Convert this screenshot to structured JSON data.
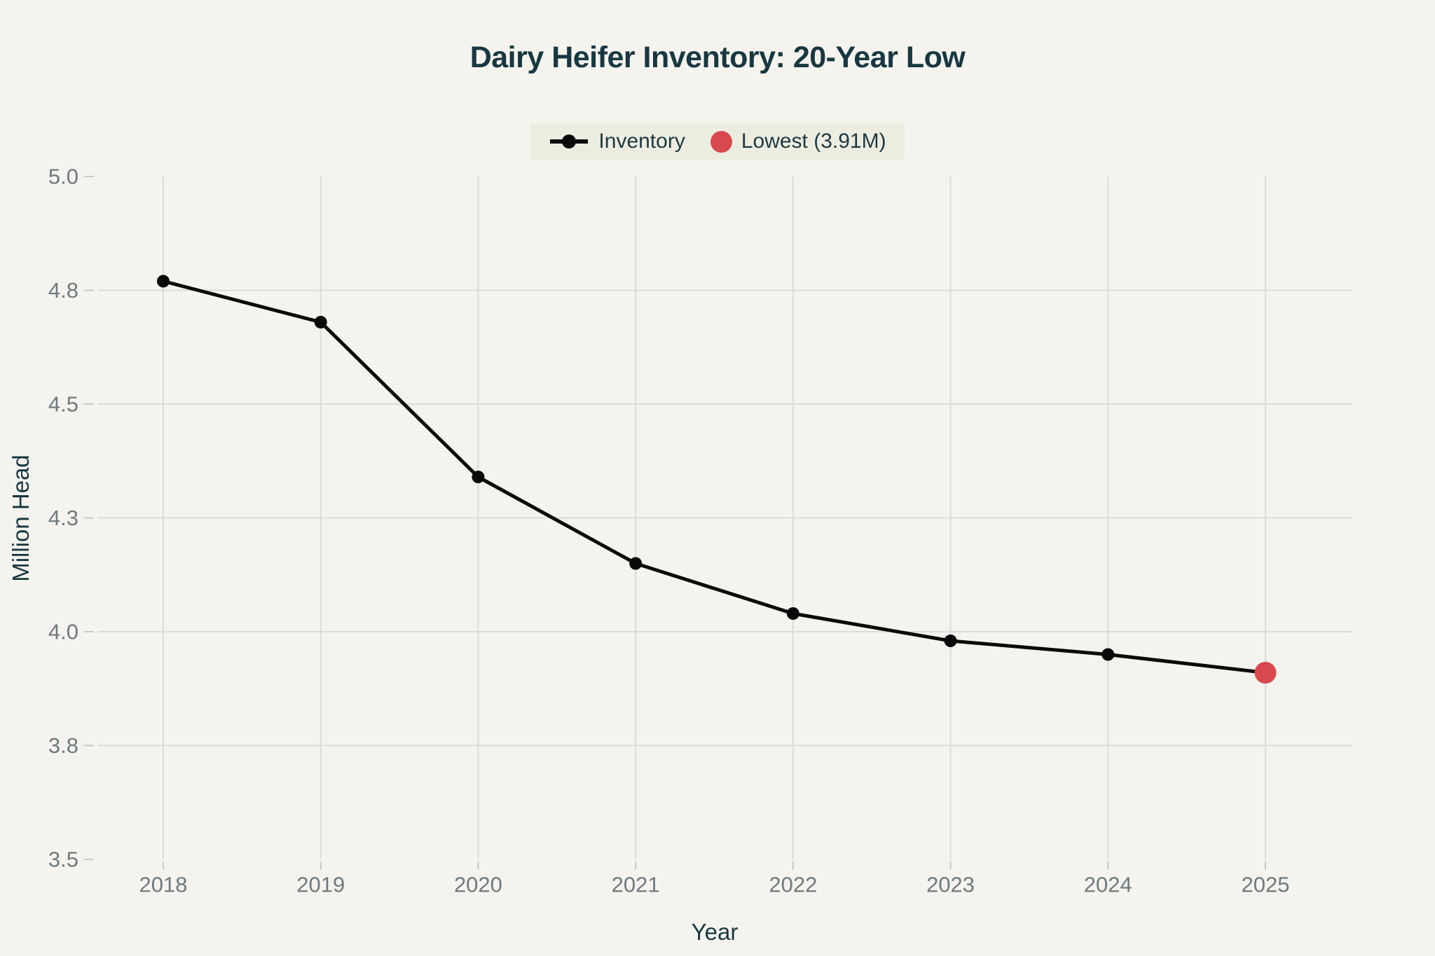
{
  "page": {
    "background": "#f4f3ee"
  },
  "header": {
    "title": "Dairy Heifer Inventory: 20-Year Low"
  },
  "legend": {
    "background": "#ecede0",
    "items": [
      {
        "label": "Inventory",
        "swatch": "line-dot-icon",
        "color": "#0a0a0a"
      },
      {
        "label": "Lowest (3.91M)",
        "swatch": "dot-icon",
        "color": "#d7494c"
      }
    ]
  },
  "axes": {
    "x_title": "Year",
    "y_title": "Million Head"
  },
  "chart_data": {
    "type": "line",
    "title": "Dairy Heifer Inventory: 20-Year Low",
    "categories": [
      "2018",
      "2019",
      "2020",
      "2021",
      "2022",
      "2023",
      "2024",
      "2025"
    ],
    "series": [
      {
        "name": "Inventory",
        "values": [
          4.77,
          4.68,
          4.34,
          4.15,
          4.04,
          3.98,
          3.95,
          3.91
        ]
      }
    ],
    "highlight": {
      "category": "2025",
      "value": 3.91,
      "label": "Lowest (3.91M)",
      "color": "#d7494c"
    },
    "xlabel": "Year",
    "ylabel": "Million Head",
    "ylim": [
      3.5,
      5.0
    ],
    "y_ticks": [
      3.5,
      3.75,
      4.0,
      4.25,
      4.5,
      4.75,
      5.0
    ],
    "y_tick_labels": [
      "3.5",
      "3.8",
      "4.0",
      "4.3",
      "4.5",
      "4.8",
      "5.0"
    ],
    "grid": true,
    "legend_position": "top-center",
    "colors": {
      "line": "#0a0a0a",
      "grid": "#dbdbd7",
      "tick": "#c9c9c6",
      "tick_text": "#6d7a7e",
      "title_text": "#183741"
    }
  }
}
